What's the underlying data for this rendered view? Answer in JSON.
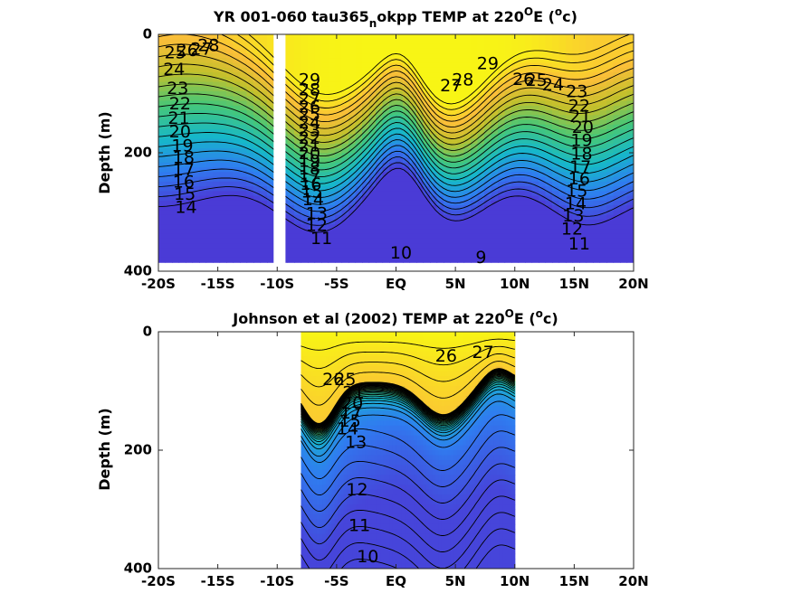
{
  "chart_data": [
    {
      "type": "contour",
      "title": {
        "prefix": "YR 001-060 tau365",
        "sub": "n",
        "mid": "okpp TEMP at 220",
        "sup1": "O",
        "mid2": "E (",
        "sup2": "o",
        "suffix": "c)"
      },
      "ylabel": "Depth (m)",
      "xlim": [
        -20,
        20
      ],
      "ylim": [
        400,
        0
      ],
      "y_reversed": true,
      "x_ticks": [
        {
          "value": -20,
          "label": "-20S"
        },
        {
          "value": -15,
          "label": "-15S"
        },
        {
          "value": -10,
          "label": "-10S"
        },
        {
          "value": -5,
          "label": "-5S"
        },
        {
          "value": 0,
          "label": "EQ"
        },
        {
          "value": 5,
          "label": "5N"
        },
        {
          "value": 10,
          "label": "10N"
        },
        {
          "value": 15,
          "label": "15N"
        },
        {
          "value": 20,
          "label": "20N"
        }
      ],
      "y_ticks": [
        {
          "value": 0,
          "label": "0"
        },
        {
          "value": 200,
          "label": "200"
        },
        {
          "value": 400,
          "label": "400"
        }
      ],
      "data_extent": {
        "lat": [
          -20,
          20
        ],
        "depth": [
          0,
          385
        ]
      },
      "data_gap_lat": [
        -10.3,
        -9.3
      ],
      "colormap": [
        "#4a3bd6",
        "#2f7df0",
        "#16b8c9",
        "#47c777",
        "#c2c02c",
        "#fbbe39",
        "#f8f515"
      ],
      "temp_range": [
        9,
        29
      ],
      "contour_labels": [
        {
          "text": "28",
          "lat": -16.7,
          "depth": 20
        },
        {
          "text": "27",
          "lat": -17.3,
          "depth": 26
        },
        {
          "text": "26",
          "lat": -18.5,
          "depth": 28
        },
        {
          "text": "25",
          "lat": -19.5,
          "depth": 32
        },
        {
          "text": "24",
          "lat": -19.6,
          "depth": 60
        },
        {
          "text": "23",
          "lat": -19.3,
          "depth": 92
        },
        {
          "text": "22",
          "lat": -19.1,
          "depth": 118
        },
        {
          "text": "21",
          "lat": -19.2,
          "depth": 143
        },
        {
          "text": "20",
          "lat": -19.1,
          "depth": 166
        },
        {
          "text": "19",
          "lat": -18.9,
          "depth": 189
        },
        {
          "text": "18",
          "lat": -18.8,
          "depth": 209
        },
        {
          "text": "17",
          "lat": -18.8,
          "depth": 230
        },
        {
          "text": "16",
          "lat": -18.8,
          "depth": 250
        },
        {
          "text": "15",
          "lat": -18.7,
          "depth": 271
        },
        {
          "text": "14",
          "lat": -18.6,
          "depth": 293
        },
        {
          "text": "29",
          "lat": -8.2,
          "depth": 78
        },
        {
          "text": "28",
          "lat": -8.2,
          "depth": 95
        },
        {
          "text": "27",
          "lat": -8.2,
          "depth": 110
        },
        {
          "text": "26",
          "lat": -8.2,
          "depth": 124
        },
        {
          "text": "25",
          "lat": -8.2,
          "depth": 137
        },
        {
          "text": "24",
          "lat": -8.2,
          "depth": 150
        },
        {
          "text": "23",
          "lat": -8.2,
          "depth": 163
        },
        {
          "text": "22",
          "lat": -8.2,
          "depth": 176
        },
        {
          "text": "21",
          "lat": -8.2,
          "depth": 189
        },
        {
          "text": "20",
          "lat": -8.2,
          "depth": 202
        },
        {
          "text": "19",
          "lat": -8.2,
          "depth": 215
        },
        {
          "text": "18",
          "lat": -8.2,
          "depth": 228
        },
        {
          "text": "17",
          "lat": -8.2,
          "depth": 241
        },
        {
          "text": "16",
          "lat": -8.1,
          "depth": 254
        },
        {
          "text": "15",
          "lat": -8.0,
          "depth": 267
        },
        {
          "text": "14",
          "lat": -7.9,
          "depth": 280
        },
        {
          "text": "13",
          "lat": -7.6,
          "depth": 304
        },
        {
          "text": "12",
          "lat": -7.6,
          "depth": 324
        },
        {
          "text": "11",
          "lat": -7.2,
          "depth": 346
        },
        {
          "text": "10",
          "lat": -0.5,
          "depth": 370
        },
        {
          "text": "9",
          "lat": 6.7,
          "depth": 378
        },
        {
          "text": "29",
          "lat": 6.8,
          "depth": 50
        },
        {
          "text": "28",
          "lat": 4.7,
          "depth": 78
        },
        {
          "text": "27",
          "lat": 3.7,
          "depth": 88
        },
        {
          "text": "26",
          "lat": 9.8,
          "depth": 77
        },
        {
          "text": "25",
          "lat": 10.9,
          "depth": 79
        },
        {
          "text": "24",
          "lat": 12.3,
          "depth": 86
        },
        {
          "text": "23",
          "lat": 14.3,
          "depth": 98
        },
        {
          "text": "22",
          "lat": 14.5,
          "depth": 122
        },
        {
          "text": "21",
          "lat": 14.6,
          "depth": 140
        },
        {
          "text": "20",
          "lat": 14.8,
          "depth": 158
        },
        {
          "text": "19",
          "lat": 14.7,
          "depth": 180
        },
        {
          "text": "18",
          "lat": 14.7,
          "depth": 203
        },
        {
          "text": "17",
          "lat": 14.6,
          "depth": 225
        },
        {
          "text": "16",
          "lat": 14.5,
          "depth": 245
        },
        {
          "text": "15",
          "lat": 14.3,
          "depth": 266
        },
        {
          "text": "14",
          "lat": 14.2,
          "depth": 287
        },
        {
          "text": "13",
          "lat": 14.0,
          "depth": 308
        },
        {
          "text": "12",
          "lat": 13.9,
          "depth": 330
        },
        {
          "text": "11",
          "lat": 14.5,
          "depth": 355
        }
      ]
    },
    {
      "type": "contour",
      "title": {
        "prefix": "Johnson et al (2002) TEMP at 220",
        "sup1": "O",
        "mid2": "E (",
        "sup2": "o",
        "suffix": "c)"
      },
      "ylabel": "Depth (m)",
      "xlim": [
        -20,
        20
      ],
      "ylim": [
        400,
        0
      ],
      "y_reversed": true,
      "x_ticks": [
        {
          "value": -20,
          "label": "-20S"
        },
        {
          "value": -15,
          "label": "-15S"
        },
        {
          "value": -10,
          "label": "-10S"
        },
        {
          "value": -5,
          "label": "-5S"
        },
        {
          "value": 0,
          "label": "EQ"
        },
        {
          "value": 5,
          "label": "5N"
        },
        {
          "value": 10,
          "label": "10N"
        },
        {
          "value": 15,
          "label": "15N"
        },
        {
          "value": 20,
          "label": "20N"
        }
      ],
      "y_ticks": [
        {
          "value": 0,
          "label": "0"
        },
        {
          "value": 200,
          "label": "200"
        },
        {
          "value": 400,
          "label": "400"
        }
      ],
      "data_extent": {
        "lat": [
          -8,
          10
        ],
        "depth": [
          0,
          400
        ]
      },
      "colormap": [
        "#4a3bd6",
        "#2f7df0",
        "#16b8c9",
        "#47c777",
        "#c2c02c",
        "#fbbe39",
        "#f8f515"
      ],
      "temp_range": [
        9,
        28
      ],
      "contour_labels": [
        {
          "text": "26",
          "lat": 3.3,
          "depth": 42
        },
        {
          "text": "27",
          "lat": 6.4,
          "depth": 36
        },
        {
          "text": "26",
          "lat": -6.2,
          "depth": 82
        },
        {
          "text": "25",
          "lat": -5.2,
          "depth": 82
        },
        {
          "text": "21",
          "lat": -4.5,
          "depth": 104
        },
        {
          "text": "20",
          "lat": -4.6,
          "depth": 122
        },
        {
          "text": "17",
          "lat": -4.7,
          "depth": 138
        },
        {
          "text": "15",
          "lat": -4.8,
          "depth": 152
        },
        {
          "text": "14",
          "lat": -5.0,
          "depth": 165
        },
        {
          "text": "13",
          "lat": -4.3,
          "depth": 188
        },
        {
          "text": "12",
          "lat": -4.2,
          "depth": 268
        },
        {
          "text": "11",
          "lat": -4.0,
          "depth": 328
        },
        {
          "text": "10",
          "lat": -3.3,
          "depth": 381
        }
      ]
    }
  ]
}
